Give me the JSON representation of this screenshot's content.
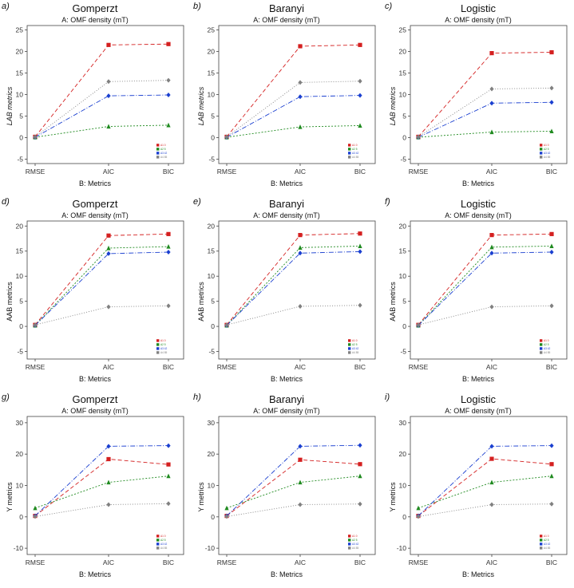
{
  "chart_data": [
    {
      "type": "line",
      "panel_label": "a)",
      "title": "Gomperzt",
      "subtitle": "A: OMF density (mT)",
      "xlabel": "B: Metrics",
      "ylabel": "LAB metrics",
      "categories": [
        "RMSE",
        "AIC",
        "BIC"
      ],
      "ylim": [
        -6,
        26
      ],
      "yticks": [
        -5,
        0,
        5,
        10,
        15,
        20,
        25
      ],
      "series": [
        {
          "name": "A1 0",
          "color": "#d42020",
          "marker": "square",
          "values": [
            0.2,
            21.5,
            21.7
          ]
        },
        {
          "name": "A2 5",
          "color": "#1f8a1f",
          "marker": "triangle",
          "values": [
            0.1,
            2.6,
            2.9
          ]
        },
        {
          "name": "A3 42",
          "color": "#1a3fd0",
          "marker": "diamond",
          "values": [
            0.1,
            9.7,
            9.9
          ]
        },
        {
          "name": "A4 85",
          "color": "#808080",
          "marker": "diamond",
          "values": [
            0.2,
            13.0,
            13.3
          ]
        }
      ]
    },
    {
      "type": "line",
      "panel_label": "b)",
      "title": "Baranyi",
      "subtitle": "A: OMF density (mT)",
      "xlabel": "B: Metrics",
      "ylabel": "LAB metrics",
      "categories": [
        "RMSE",
        "AIC",
        "BIC"
      ],
      "ylim": [
        -6,
        26
      ],
      "yticks": [
        -5,
        0,
        5,
        10,
        15,
        20,
        25
      ],
      "series": [
        {
          "name": "A1 0",
          "color": "#d42020",
          "marker": "square",
          "values": [
            0.2,
            21.2,
            21.5
          ]
        },
        {
          "name": "A2 5",
          "color": "#1f8a1f",
          "marker": "triangle",
          "values": [
            0.1,
            2.5,
            2.8
          ]
        },
        {
          "name": "A3 42",
          "color": "#1a3fd0",
          "marker": "diamond",
          "values": [
            0.1,
            9.5,
            9.8
          ]
        },
        {
          "name": "A4 85",
          "color": "#808080",
          "marker": "diamond",
          "values": [
            0.2,
            12.8,
            13.1
          ]
        }
      ]
    },
    {
      "type": "line",
      "panel_label": "c)",
      "title": "Logistic",
      "subtitle": "A: OMF density (mT)",
      "xlabel": "B: Metrics",
      "ylabel": "LAB metrics",
      "categories": [
        "RMSE",
        "AIC",
        "BIC"
      ],
      "ylim": [
        -6,
        26
      ],
      "yticks": [
        -5,
        0,
        5,
        10,
        15,
        20,
        25
      ],
      "series": [
        {
          "name": "A1 0",
          "color": "#d42020",
          "marker": "square",
          "values": [
            0.2,
            19.6,
            19.8
          ]
        },
        {
          "name": "A2 5",
          "color": "#1f8a1f",
          "marker": "triangle",
          "values": [
            0.1,
            1.3,
            1.5
          ]
        },
        {
          "name": "A3 42",
          "color": "#1a3fd0",
          "marker": "diamond",
          "values": [
            0.1,
            8.0,
            8.2
          ]
        },
        {
          "name": "A4 85",
          "color": "#808080",
          "marker": "diamond",
          "values": [
            0.2,
            11.3,
            11.5
          ]
        }
      ]
    },
    {
      "type": "line",
      "panel_label": "d)",
      "title": "Gomperzt",
      "subtitle": "A: OMF density (mT)",
      "xlabel": "B: Metrics",
      "ylabel": "AAB metrics",
      "categories": [
        "RMSE",
        "AIC",
        "BIC"
      ],
      "ylim": [
        -6.5,
        21
      ],
      "yticks": [
        -5,
        0,
        5,
        10,
        15,
        20
      ],
      "series": [
        {
          "name": "A1 0",
          "color": "#d42020",
          "marker": "square",
          "values": [
            0.3,
            18.1,
            18.4
          ]
        },
        {
          "name": "A2 5",
          "color": "#1f8a1f",
          "marker": "triangle",
          "values": [
            0.2,
            15.6,
            15.9
          ]
        },
        {
          "name": "A3 42",
          "color": "#1a3fd0",
          "marker": "diamond",
          "values": [
            0.2,
            14.5,
            14.8
          ]
        },
        {
          "name": "A4 85",
          "color": "#808080",
          "marker": "diamond",
          "values": [
            0.3,
            3.9,
            4.1
          ]
        }
      ]
    },
    {
      "type": "line",
      "panel_label": "e)",
      "title": "Baranyi",
      "subtitle": "A: OMF density (mT)",
      "xlabel": "B: Metrics",
      "ylabel": "AAB metrics",
      "categories": [
        "RMSE",
        "AIC",
        "BIC"
      ],
      "ylim": [
        -6.5,
        21
      ],
      "yticks": [
        -5,
        0,
        5,
        10,
        15,
        20
      ],
      "series": [
        {
          "name": "A1 0",
          "color": "#d42020",
          "marker": "square",
          "values": [
            0.3,
            18.2,
            18.5
          ]
        },
        {
          "name": "A2 5",
          "color": "#1f8a1f",
          "marker": "triangle",
          "values": [
            0.2,
            15.7,
            16.0
          ]
        },
        {
          "name": "A3 42",
          "color": "#1a3fd0",
          "marker": "diamond",
          "values": [
            0.2,
            14.6,
            14.9
          ]
        },
        {
          "name": "A4 85",
          "color": "#808080",
          "marker": "diamond",
          "values": [
            0.3,
            4.0,
            4.2
          ]
        }
      ]
    },
    {
      "type": "line",
      "panel_label": "f)",
      "title": "Logistic",
      "subtitle": "A: OMF density (mT)",
      "xlabel": "B: Metrics",
      "ylabel": "AAB metrics",
      "categories": [
        "RMSE",
        "AIC",
        "BIC"
      ],
      "ylim": [
        -6.5,
        21
      ],
      "yticks": [
        -5,
        0,
        5,
        10,
        15,
        20
      ],
      "series": [
        {
          "name": "A1 0",
          "color": "#d42020",
          "marker": "square",
          "values": [
            0.3,
            18.2,
            18.4
          ]
        },
        {
          "name": "A2 5",
          "color": "#1f8a1f",
          "marker": "triangle",
          "values": [
            0.2,
            15.8,
            16.0
          ]
        },
        {
          "name": "A3 42",
          "color": "#1a3fd0",
          "marker": "diamond",
          "values": [
            0.2,
            14.6,
            14.8
          ]
        },
        {
          "name": "A4 85",
          "color": "#808080",
          "marker": "diamond",
          "values": [
            0.3,
            3.9,
            4.1
          ]
        }
      ]
    },
    {
      "type": "line",
      "panel_label": "g)",
      "title": "Gomperzt",
      "subtitle": "A: OMF density (mT)",
      "xlabel": "B: Metrics",
      "ylabel": "Y metrics",
      "categories": [
        "RMSE",
        "AIC",
        "BIC"
      ],
      "ylim": [
        -12,
        32
      ],
      "yticks": [
        -10,
        0,
        10,
        20,
        30
      ],
      "series": [
        {
          "name": "A1 0",
          "color": "#d42020",
          "marker": "square",
          "values": [
            0.3,
            18.4,
            16.7
          ]
        },
        {
          "name": "A2 5",
          "color": "#1f8a1f",
          "marker": "triangle",
          "values": [
            2.8,
            11.0,
            13.0
          ]
        },
        {
          "name": "A3 42",
          "color": "#1a3fd0",
          "marker": "diamond",
          "values": [
            0.3,
            22.5,
            22.7
          ]
        },
        {
          "name": "A4 85",
          "color": "#808080",
          "marker": "diamond",
          "values": [
            0.1,
            3.9,
            4.2
          ]
        }
      ]
    },
    {
      "type": "line",
      "panel_label": "h)",
      "title": "Baranyi",
      "subtitle": "A: OMF density (mT)",
      "xlabel": "B: Metrics",
      "ylabel": "Y metrics",
      "categories": [
        "RMSE",
        "AIC",
        "BIC"
      ],
      "ylim": [
        -12,
        32
      ],
      "yticks": [
        -10,
        0,
        10,
        20,
        30
      ],
      "series": [
        {
          "name": "A1 0",
          "color": "#d42020",
          "marker": "square",
          "values": [
            0.3,
            18.2,
            16.8
          ]
        },
        {
          "name": "A2 5",
          "color": "#1f8a1f",
          "marker": "triangle",
          "values": [
            2.8,
            11.0,
            13.0
          ]
        },
        {
          "name": "A3 42",
          "color": "#1a3fd0",
          "marker": "diamond",
          "values": [
            0.3,
            22.5,
            22.8
          ]
        },
        {
          "name": "A4 85",
          "color": "#808080",
          "marker": "diamond",
          "values": [
            0.1,
            3.9,
            4.1
          ]
        }
      ]
    },
    {
      "type": "line",
      "panel_label": "i)",
      "title": "Logistic",
      "subtitle": "A: OMF density (mT)",
      "xlabel": "B: Metrics",
      "ylabel": "Y metrics",
      "categories": [
        "RMSE",
        "AIC",
        "BIC"
      ],
      "ylim": [
        -12,
        32
      ],
      "yticks": [
        -10,
        0,
        10,
        20,
        30
      ],
      "series": [
        {
          "name": "A1 0",
          "color": "#d42020",
          "marker": "square",
          "values": [
            0.3,
            18.5,
            16.8
          ]
        },
        {
          "name": "A2 5",
          "color": "#1f8a1f",
          "marker": "triangle",
          "values": [
            2.8,
            11.0,
            13.0
          ]
        },
        {
          "name": "A3 42",
          "color": "#1a3fd0",
          "marker": "diamond",
          "values": [
            0.3,
            22.5,
            22.7
          ]
        },
        {
          "name": "A4 85",
          "color": "#808080",
          "marker": "diamond",
          "values": [
            0.1,
            3.9,
            4.1
          ]
        }
      ]
    }
  ]
}
